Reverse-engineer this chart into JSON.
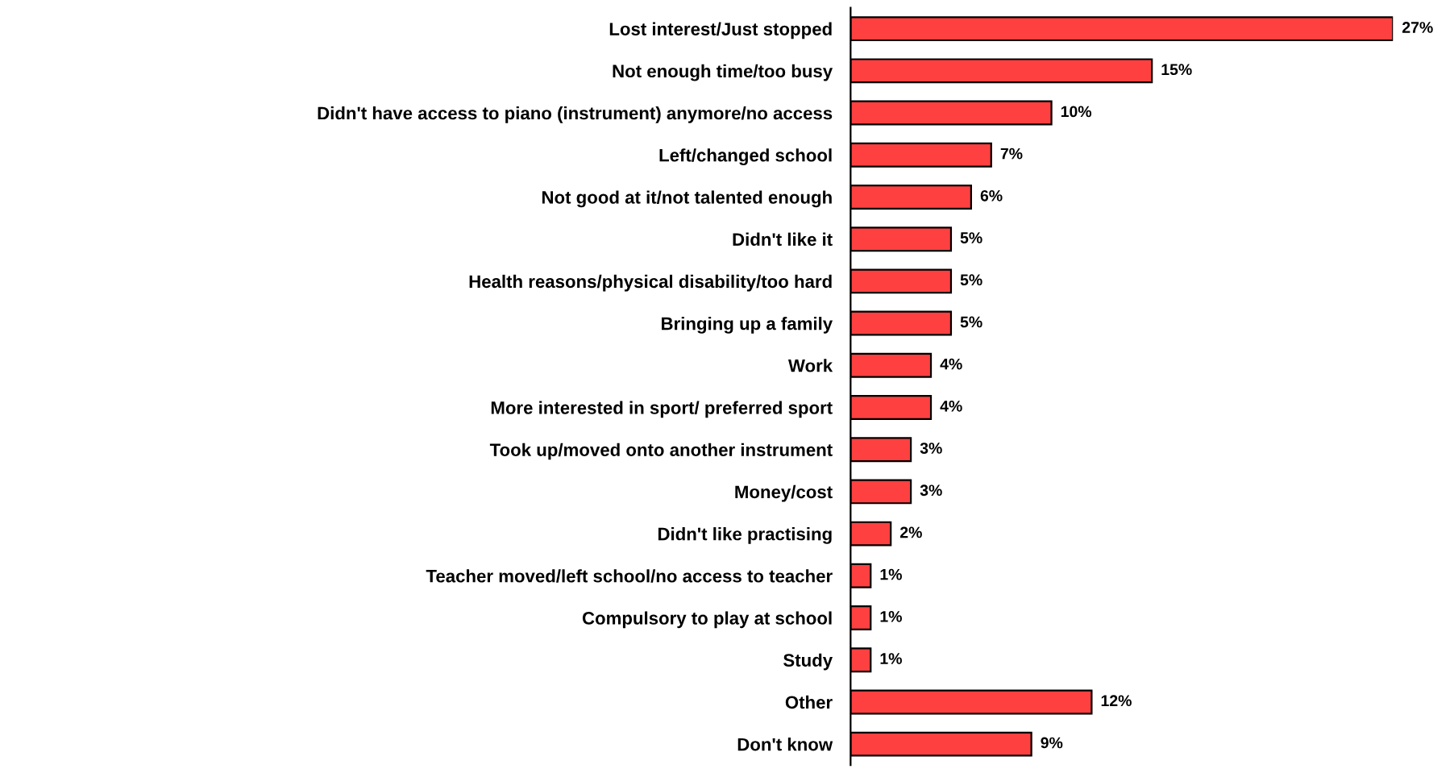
{
  "chart_data": {
    "type": "bar",
    "orientation": "horizontal",
    "categories": [
      "Lost interest/Just stopped",
      "Not enough time/too busy",
      "Didn't have access to piano (instrument) anymore/no access",
      "Left/changed school",
      "Not good at it/not talented enough",
      "Didn't like it",
      "Health reasons/physical disability/too hard",
      "Bringing up a family",
      "Work",
      "More interested in sport/ preferred sport",
      "Took up/moved onto another instrument",
      "Money/cost",
      "Didn't like practising",
      "Teacher moved/left school/no access to teacher",
      "Compulsory to play at school",
      "Study",
      "Other",
      "Don't know"
    ],
    "values": [
      27,
      15,
      10,
      7,
      6,
      5,
      5,
      5,
      4,
      4,
      3,
      3,
      2,
      1,
      1,
      1,
      12,
      9
    ],
    "value_labels": [
      "27%",
      "15%",
      "10%",
      "7%",
      "6%",
      "5%",
      "5%",
      "5%",
      "4%",
      "4%",
      "3%",
      "3%",
      "2%",
      "1%",
      "1%",
      "1%",
      "12%",
      "9%"
    ],
    "color": "#ff4040",
    "grid": false,
    "legend": false
  }
}
